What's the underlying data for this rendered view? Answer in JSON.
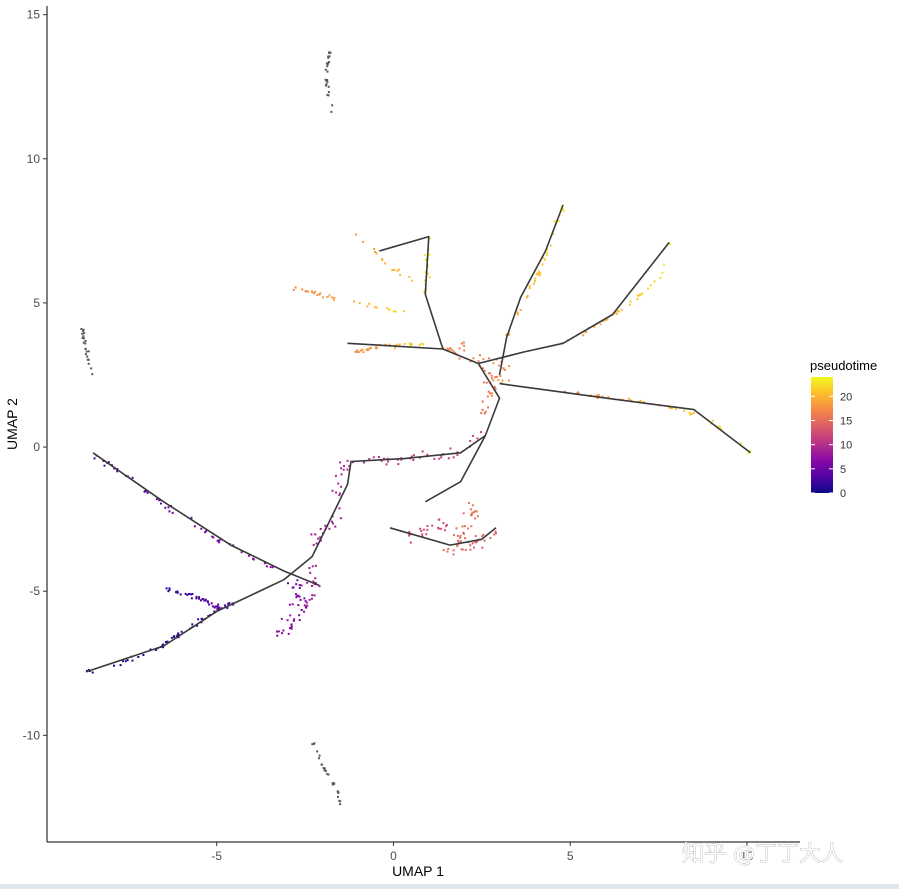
{
  "chart_data": {
    "type": "scatter",
    "title": "",
    "xlabel": "UMAP 1",
    "ylabel": "UMAP 2",
    "xlim": [
      -9.8,
      11.5
    ],
    "ylim": [
      -13.7,
      15.3
    ],
    "x_ticks": [
      -5,
      0,
      5,
      10
    ],
    "y_ticks": [
      -10,
      -5,
      0,
      5,
      10,
      15
    ],
    "grid": false,
    "legend": {
      "title": "pseudotime",
      "placement": "right",
      "range": [
        0,
        24
      ],
      "ticks": [
        0,
        5,
        10,
        15,
        20
      ],
      "colors": [
        "#0d0887",
        "#5302a3",
        "#8b0aa5",
        "#b83289",
        "#db5c68",
        "#f48849",
        "#febd2a",
        "#f0f921"
      ]
    },
    "unassigned_color": "#595959",
    "trajectory_color": "#3a3a3a",
    "clusters": [
      {
        "name": "root-tail",
        "pseudotime": [
          0,
          3
        ],
        "points": [
          [
            -8.7,
            -7.8
          ],
          [
            -7.6,
            -7.5
          ],
          [
            -6.4,
            -6.8
          ],
          [
            -5.3,
            -5.9
          ],
          [
            -4.4,
            -5.3
          ]
        ],
        "spread": 0.12,
        "density": 55
      },
      {
        "name": "lower-branch",
        "pseudotime": [
          1,
          4
        ],
        "points": [
          [
            -6.4,
            -4.9
          ],
          [
            -5.4,
            -5.3
          ],
          [
            -4.9,
            -5.6
          ]
        ],
        "spread": 0.1,
        "density": 40
      },
      {
        "name": "left-arm",
        "pseudotime": [
          3,
          7
        ],
        "points": [
          [
            -8.5,
            -0.3
          ],
          [
            -7.6,
            -1.0
          ],
          [
            -6.5,
            -2.0
          ],
          [
            -5.2,
            -3.0
          ],
          [
            -4.0,
            -3.8
          ],
          [
            -3.2,
            -4.4
          ]
        ],
        "spread": 0.16,
        "density": 50
      },
      {
        "name": "purple-blob",
        "pseudotime": [
          5,
          9
        ],
        "points": [
          [
            -3.0,
            -4.3
          ],
          [
            -2.6,
            -5.3
          ],
          [
            -2.8,
            -6.2
          ],
          [
            -3.2,
            -6.6
          ],
          [
            -2.2,
            -4.8
          ],
          [
            -2.4,
            -4.0
          ]
        ],
        "spread": 0.35,
        "density": 60
      },
      {
        "name": "mid-arm",
        "pseudotime": [
          8,
          12
        ],
        "points": [
          [
            -2.3,
            -3.5
          ],
          [
            -1.6,
            -2.3
          ],
          [
            -1.4,
            -0.6
          ],
          [
            0.5,
            -0.4
          ],
          [
            1.9,
            -0.2
          ],
          [
            2.5,
            0.5
          ]
        ],
        "spread": 0.28,
        "density": 70
      },
      {
        "name": "magenta-blob",
        "pseudotime": [
          12,
          16
        ],
        "points": [
          [
            0.4,
            -3.2
          ],
          [
            1.4,
            -2.6
          ],
          [
            2.2,
            -3.3
          ],
          [
            2.9,
            -3.0
          ],
          [
            1.6,
            -3.6
          ],
          [
            2.4,
            -2.0
          ]
        ],
        "spread": 0.35,
        "density": 80
      },
      {
        "name": "hub",
        "pseudotime": [
          15,
          18
        ],
        "points": [
          [
            2.5,
            1.0
          ],
          [
            2.8,
            2.4
          ],
          [
            2.2,
            3.6
          ],
          [
            1.4,
            3.4
          ],
          [
            3.2,
            2.7
          ],
          [
            2.7,
            1.8
          ]
        ],
        "spread": 0.3,
        "density": 60
      },
      {
        "name": "upper-branch-a",
        "pseudotime": [
          18,
          24
        ],
        "points": [
          [
            3.2,
            3.8
          ],
          [
            3.6,
            4.8
          ],
          [
            4.2,
            6.3
          ],
          [
            4.9,
            8.6
          ]
        ],
        "spread": 0.1,
        "density": 35
      },
      {
        "name": "upper-branch-b",
        "pseudotime": [
          18,
          24
        ],
        "points": [
          [
            4.7,
            3.5
          ],
          [
            6.3,
            4.6
          ],
          [
            7.6,
            5.9
          ],
          [
            7.8,
            7.1
          ]
        ],
        "spread": 0.1,
        "density": 35
      },
      {
        "name": "right-branch",
        "pseudotime": [
          16,
          24
        ],
        "points": [
          [
            4.5,
            2.0
          ],
          [
            6.8,
            1.6
          ],
          [
            8.8,
            1.1
          ],
          [
            10.1,
            -0.2
          ]
        ],
        "spread": 0.1,
        "density": 40
      },
      {
        "name": "left-branch-a",
        "pseudotime": [
          17,
          22
        ],
        "points": [
          [
            -1.2,
            3.3
          ],
          [
            -0.2,
            3.5
          ],
          [
            1.0,
            3.6
          ]
        ],
        "spread": 0.12,
        "density": 30
      },
      {
        "name": "left-branch-b",
        "pseudotime": [
          17,
          22
        ],
        "points": [
          [
            -2.8,
            5.5
          ],
          [
            -1.5,
            5.1
          ],
          [
            0.3,
            4.7
          ]
        ],
        "spread": 0.12,
        "density": 30
      },
      {
        "name": "top-branch",
        "pseudotime": [
          18,
          24
        ],
        "points": [
          [
            -1.1,
            7.4
          ],
          [
            -0.2,
            6.4
          ],
          [
            0.9,
            5.4
          ],
          [
            1.0,
            7.3
          ]
        ],
        "spread": 0.12,
        "density": 35
      }
    ],
    "unassigned_groups": [
      {
        "name": "top-streak",
        "points": [
          [
            -1.8,
            13.8
          ],
          [
            -1.9,
            12.9
          ],
          [
            -1.8,
            12.0
          ],
          [
            -1.7,
            11.6
          ]
        ],
        "spread": 0.07,
        "density": 25
      },
      {
        "name": "left-streak",
        "points": [
          [
            -8.8,
            4.1
          ],
          [
            -8.7,
            3.4
          ],
          [
            -8.5,
            2.4
          ]
        ],
        "spread": 0.08,
        "density": 22
      },
      {
        "name": "bottom-streak",
        "points": [
          [
            -2.3,
            -10.2
          ],
          [
            -2.0,
            -11.0
          ],
          [
            -1.6,
            -11.9
          ],
          [
            -1.5,
            -12.4
          ]
        ],
        "spread": 0.07,
        "density": 25
      }
    ],
    "trajectory": [
      [
        [
          -8.5,
          -0.2
        ],
        [
          -6.5,
          -1.9
        ],
        [
          -4.6,
          -3.4
        ],
        [
          -3.1,
          -4.3
        ],
        [
          -2.1,
          -4.8
        ]
      ],
      [
        [
          -8.7,
          -7.8
        ],
        [
          -6.5,
          -6.9
        ],
        [
          -5.0,
          -5.7
        ],
        [
          -3.1,
          -4.6
        ],
        [
          -2.3,
          -3.8
        ],
        [
          -1.3,
          -1.3
        ],
        [
          -1.2,
          -0.5
        ],
        [
          0.3,
          -0.4
        ],
        [
          1.9,
          -0.2
        ],
        [
          2.6,
          0.4
        ],
        [
          3.0,
          1.7
        ],
        [
          2.4,
          2.9
        ],
        [
          1.4,
          3.4
        ],
        [
          -1.3,
          3.6
        ]
      ],
      [
        [
          2.4,
          2.9
        ],
        [
          3.7,
          3.3
        ],
        [
          4.8,
          3.6
        ],
        [
          6.2,
          4.6
        ],
        [
          7.8,
          7.1
        ]
      ],
      [
        [
          3.0,
          2.5
        ],
        [
          3.2,
          3.8
        ],
        [
          3.6,
          5.2
        ],
        [
          4.3,
          6.8
        ],
        [
          4.8,
          8.4
        ]
      ],
      [
        [
          3.0,
          2.2
        ],
        [
          6.0,
          1.7
        ],
        [
          8.5,
          1.3
        ],
        [
          10.1,
          -0.2
        ]
      ],
      [
        [
          1.4,
          3.4
        ],
        [
          0.9,
          5.3
        ],
        [
          1.0,
          7.3
        ],
        [
          -0.4,
          6.8
        ]
      ],
      [
        [
          0.9,
          -1.9
        ],
        [
          1.9,
          -1.2
        ],
        [
          2.6,
          0.4
        ]
      ],
      [
        [
          -0.1,
          -2.8
        ],
        [
          1.6,
          -3.4
        ],
        [
          2.5,
          -3.2
        ],
        [
          2.9,
          -2.8
        ]
      ]
    ]
  },
  "watermark": "知乎 @丁丁大人"
}
